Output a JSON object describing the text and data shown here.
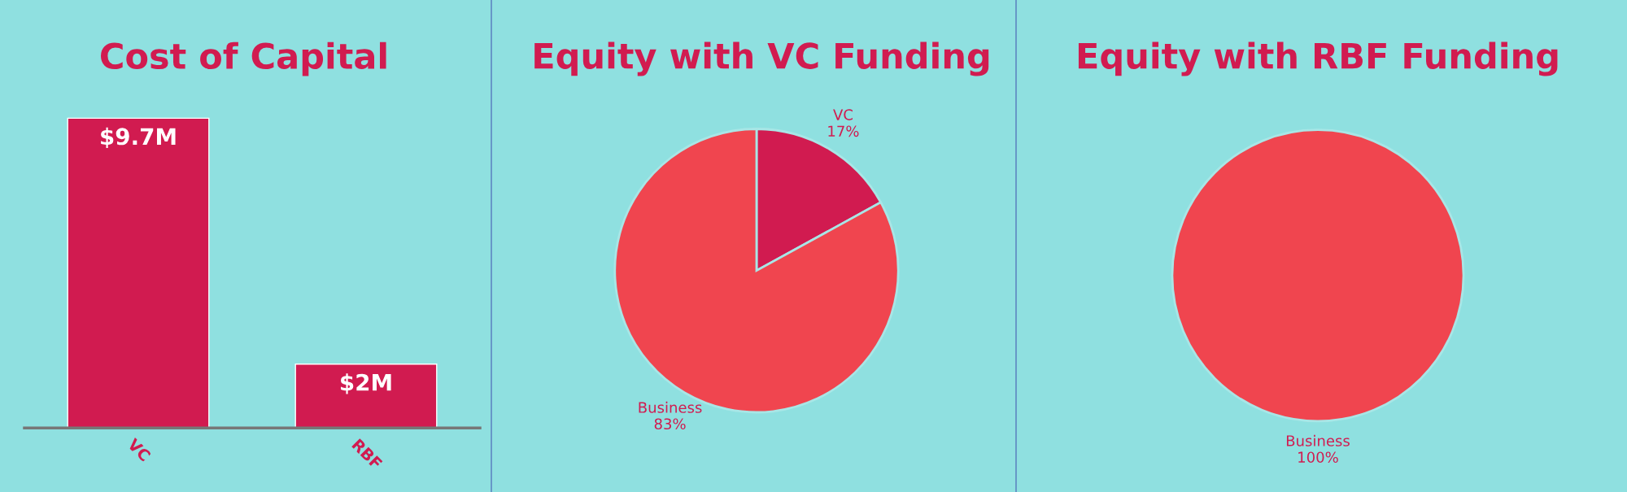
{
  "chart_data": [
    {
      "type": "bar",
      "title": "Cost of Capital",
      "categories": [
        "VC",
        "RBF"
      ],
      "values": [
        9.7,
        2
      ],
      "value_labels": [
        "$9.7M",
        "$2M"
      ],
      "color": "#d11b50",
      "grid": false,
      "legend": false
    },
    {
      "type": "pie",
      "title": "Equity with VC Funding",
      "categories": [
        "VC",
        "Business"
      ],
      "values": [
        17,
        83
      ],
      "value_labels": [
        "17%",
        "83%"
      ],
      "colors": [
        "#d11b50",
        "#f0454f"
      ],
      "legend": false
    },
    {
      "type": "pie",
      "title": "Equity with RBF Funding",
      "categories": [
        "Business"
      ],
      "values": [
        100
      ],
      "value_labels": [
        "100%"
      ],
      "colors": [
        "#f0454f"
      ],
      "legend": false
    }
  ]
}
